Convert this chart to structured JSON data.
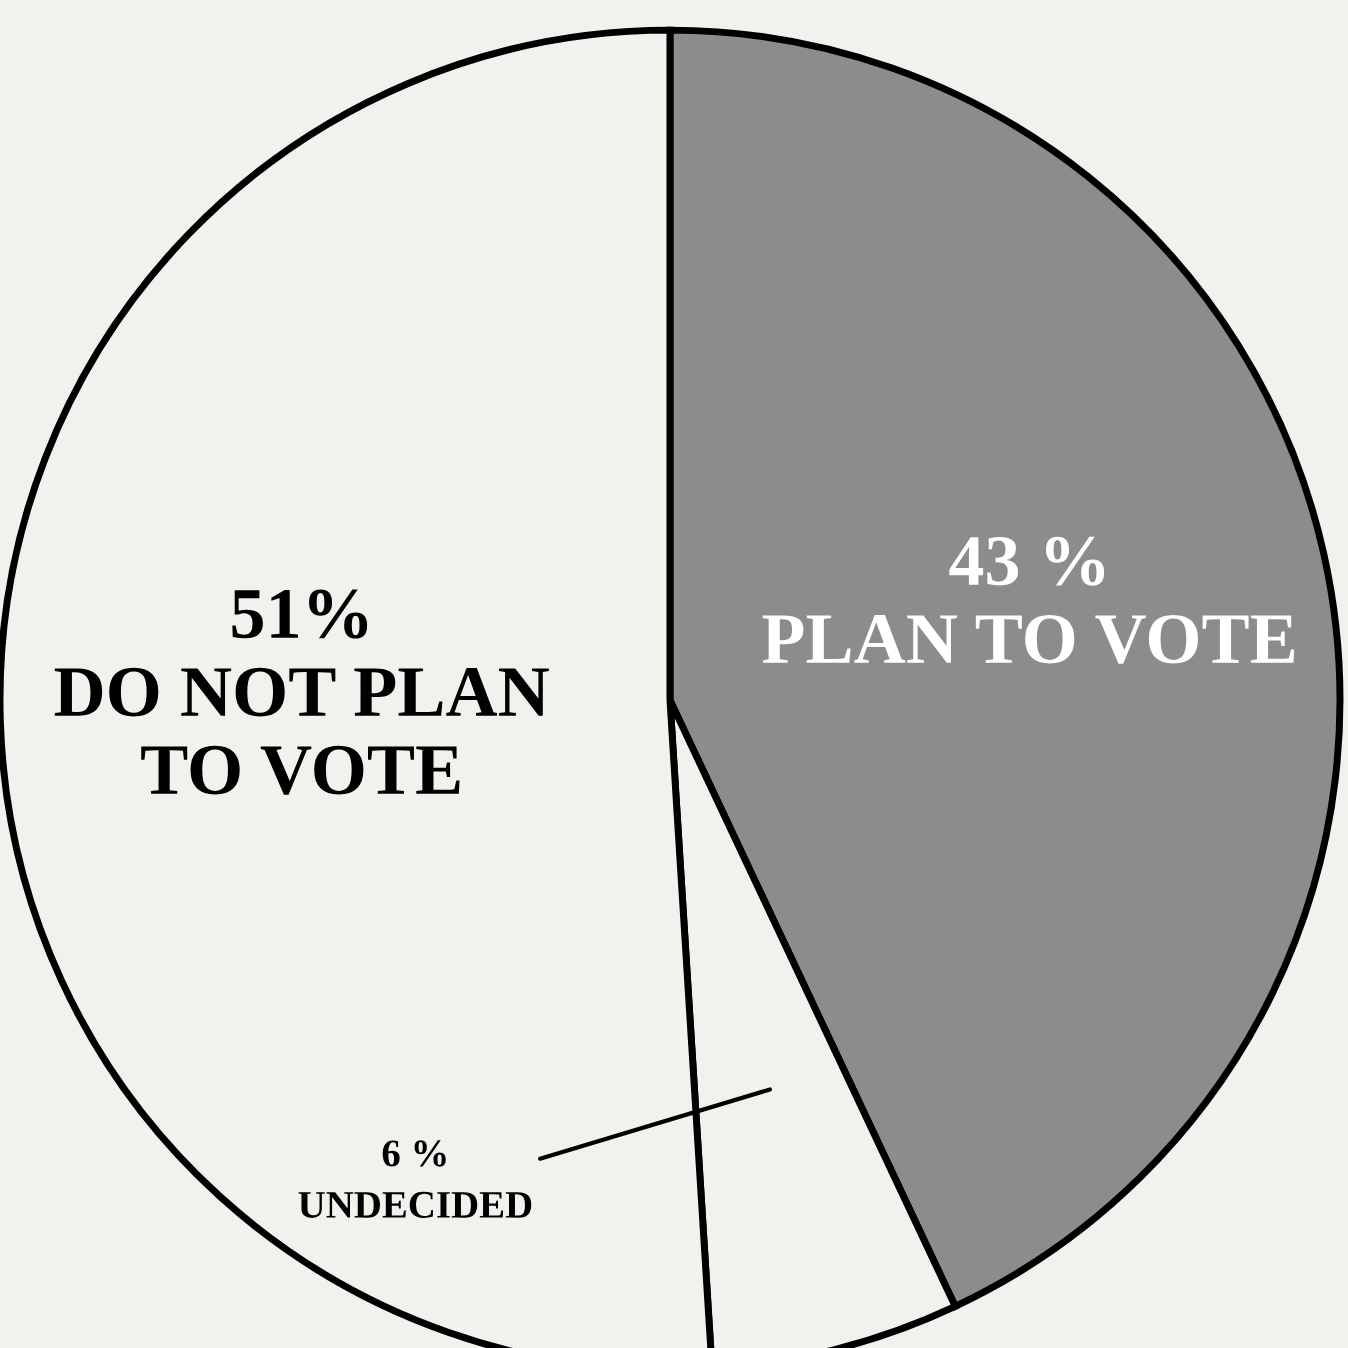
{
  "chart_data": {
    "type": "pie",
    "categories": [
      "PLAN TO VOTE",
      "UNDECIDED",
      "DO NOT PLAN TO VOTE"
    ],
    "values": [
      43,
      6,
      51
    ],
    "value_labels": [
      "43 %",
      "6 %",
      "51%"
    ],
    "colors": [
      "#8c8c8c",
      "#f2f1ee",
      "#f2f1ee"
    ],
    "legend": false
  }
}
